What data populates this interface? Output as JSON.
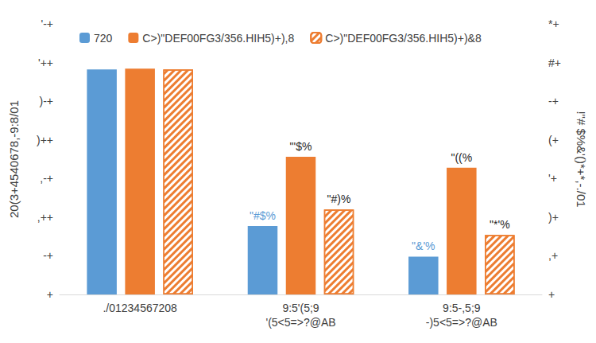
{
  "chart_data": {
    "type": "bar",
    "categories": [
      "./01234567208",
      "9:5'(5;9\n'(5<5=>?@AB",
      "9:5-,5;9\n-)5<5=>?@AB"
    ],
    "y_label": "20(3+4540678,-9:8/01",
    "y2_label": "!\"# $%&'()*+*,-./01",
    "ylim": [
      0,
      350
    ],
    "yticks": [
      {
        "value": 0,
        "label": "+"
      },
      {
        "value": 50,
        "label": "-+"
      },
      {
        "value": 100,
        "label": ",++"
      },
      {
        "value": 150,
        "label": ",-+"
      },
      {
        "value": 200,
        "label": ")++"
      },
      {
        "value": 250,
        "label": ")-+"
      },
      {
        "value": 300,
        "label": "'++"
      },
      {
        "value": 350,
        "label": "'-+"
      }
    ],
    "y2lim": [
      0,
      70
    ],
    "y2ticks": [
      {
        "value": 0,
        "label": "+"
      },
      {
        "value": 10,
        "label": ",+"
      },
      {
        "value": 20,
        "label": ")+"
      },
      {
        "value": 30,
        "label": "'+"
      },
      {
        "value": 40,
        "label": "(+"
      },
      {
        "value": 50,
        "label": "-+"
      },
      {
        "value": 60,
        "label": "#+"
      },
      {
        "value": 70,
        "label": "*+"
      }
    ],
    "grid": false,
    "legend": "top",
    "data_labels": true,
    "series": [
      {
        "name": "720",
        "color": "#5b9bd5",
        "values": [
          291,
          88.5,
          49
        ],
        "value_labels": [
          null,
          "\"#$%",
          "\"&'%"
        ]
      },
      {
        "name": "C>)\"DEF00FG3/356.HIH5)+),8",
        "color": "#ed7d31",
        "values": [
          292,
          178,
          164
        ],
        "value_labels": [
          null,
          "\"'$%",
          "\"((%"
        ]
      },
      {
        "name": "C>)\"DEF00FG3/356.HIH5)+)&8",
        "color": "#ed7d31",
        "values": [
          291,
          110,
          77
        ],
        "value_labels": [
          null,
          "\"#)%",
          "\"*'%"
        ]
      }
    ]
  }
}
